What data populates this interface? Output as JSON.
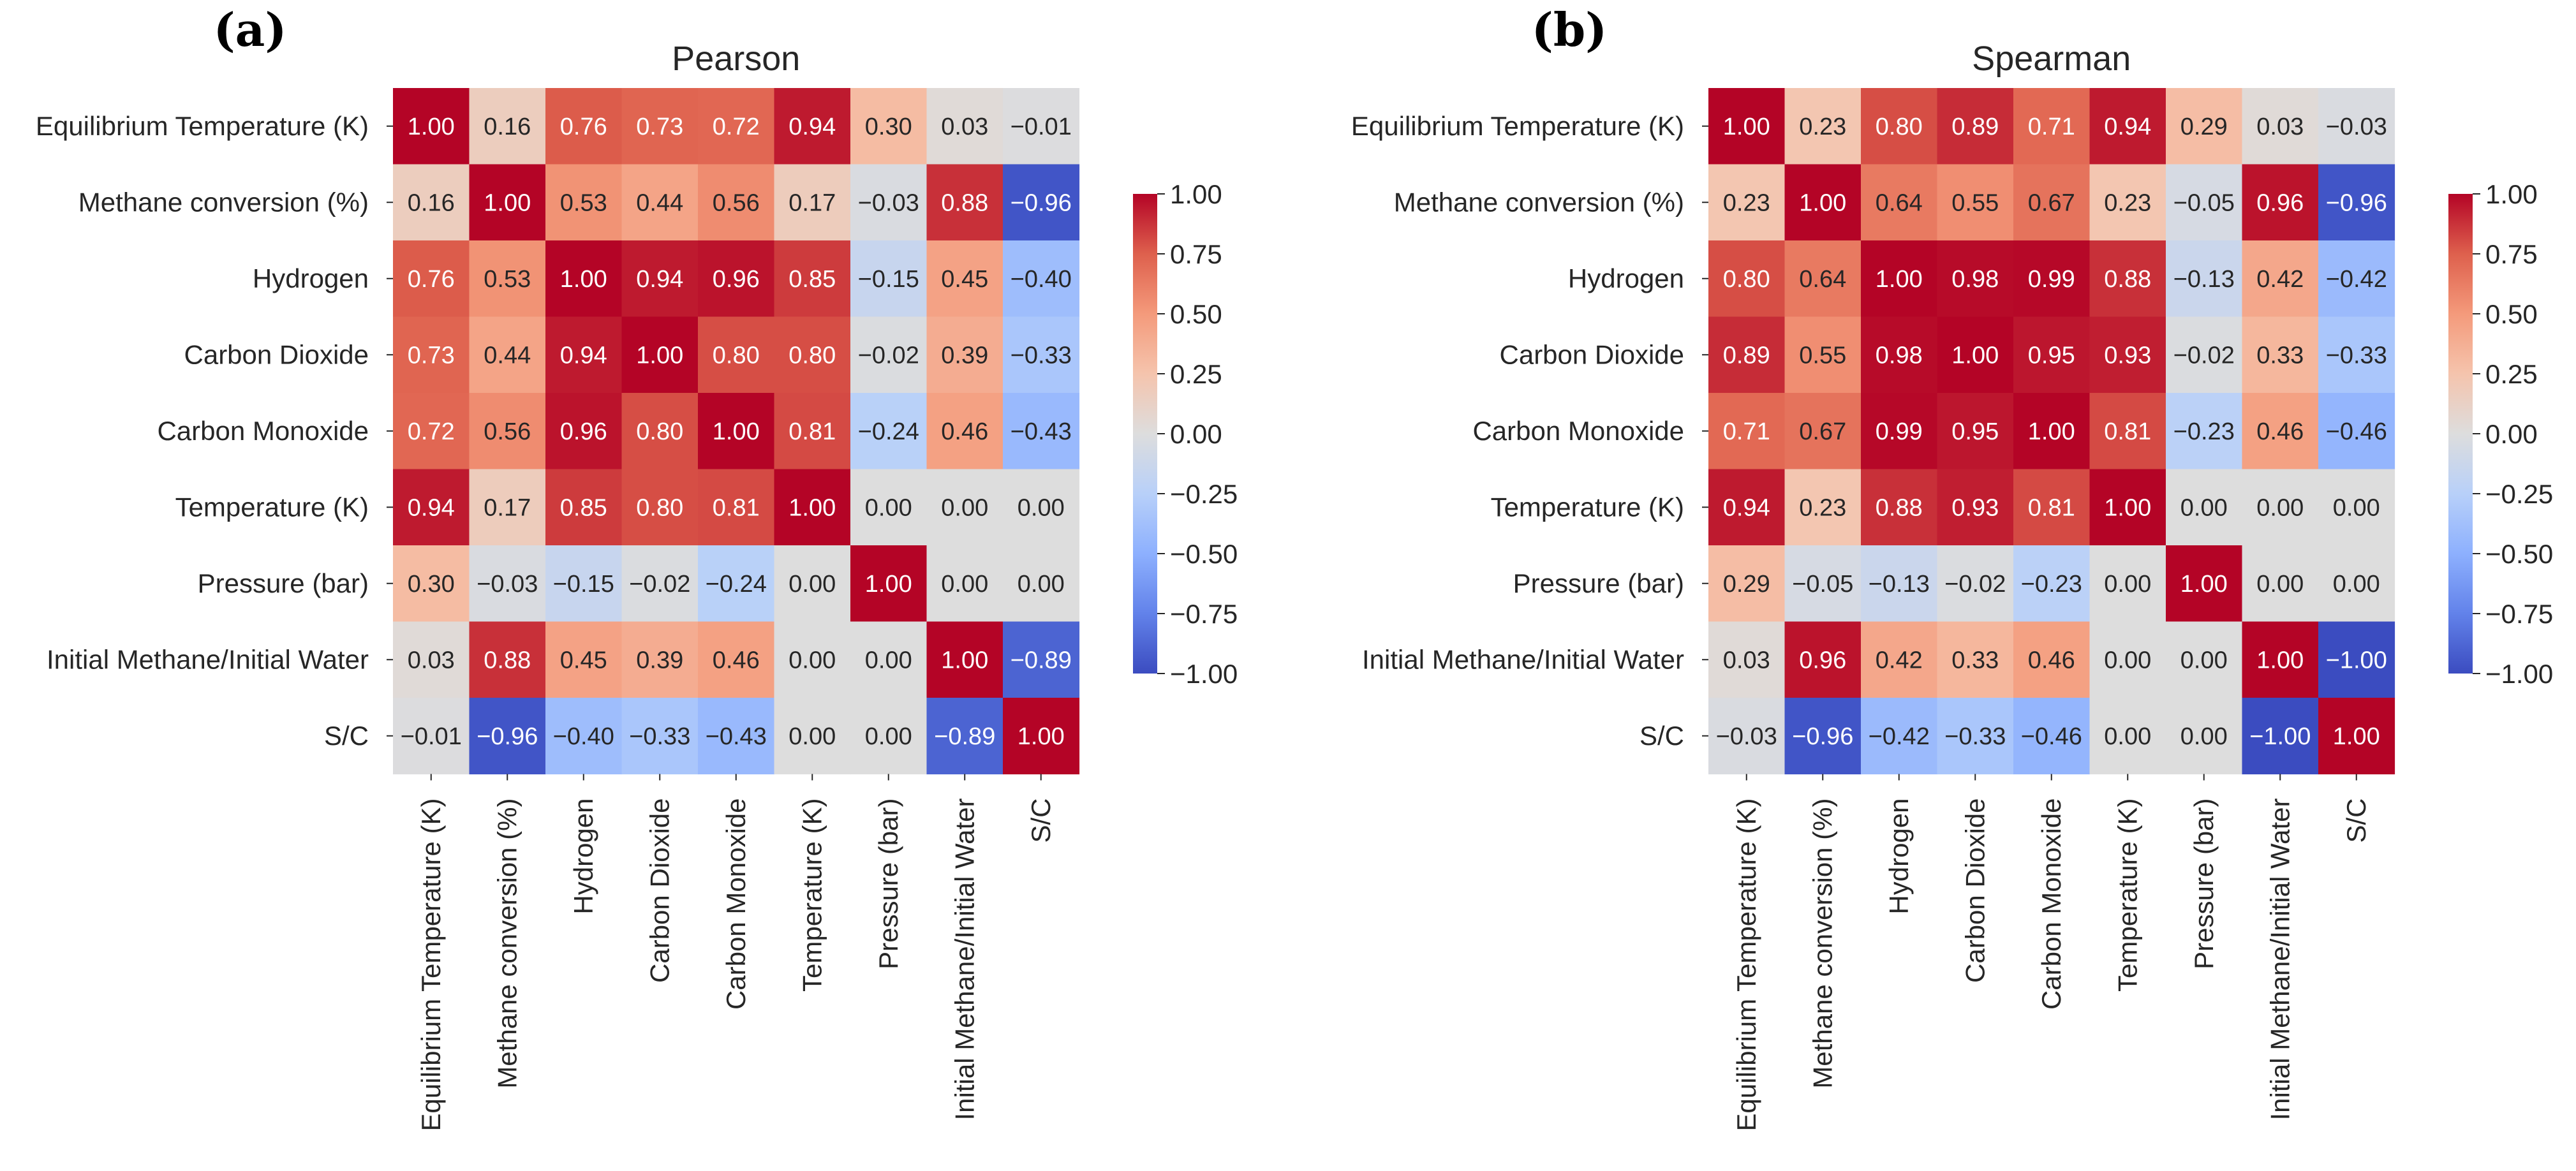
{
  "chart_data": [
    {
      "type": "heatmap",
      "panel": "(a)",
      "title": "Pearson",
      "variables": [
        "Equilibrium Temperature (K)",
        "Methane conversion (%)",
        "Hydrogen",
        "Carbon Dioxide",
        "Carbon Monoxide",
        "Temperature (K)",
        "Pressure (bar)",
        "Initial Methane/Initial Water",
        "S/C"
      ],
      "matrix": [
        [
          1.0,
          0.16,
          0.76,
          0.73,
          0.72,
          0.94,
          0.3,
          0.03,
          -0.01
        ],
        [
          0.16,
          1.0,
          0.53,
          0.44,
          0.56,
          0.17,
          -0.03,
          0.88,
          -0.96
        ],
        [
          0.76,
          0.53,
          1.0,
          0.94,
          0.96,
          0.85,
          -0.15,
          0.45,
          -0.4
        ],
        [
          0.73,
          0.44,
          0.94,
          1.0,
          0.8,
          0.8,
          -0.02,
          0.39,
          -0.33
        ],
        [
          0.72,
          0.56,
          0.96,
          0.8,
          1.0,
          0.81,
          -0.24,
          0.46,
          -0.43
        ],
        [
          0.94,
          0.17,
          0.85,
          0.8,
          0.81,
          1.0,
          0.0,
          0.0,
          0.0
        ],
        [
          0.3,
          -0.03,
          -0.15,
          -0.02,
          -0.24,
          0.0,
          1.0,
          0.0,
          0.0
        ],
        [
          0.03,
          0.88,
          0.45,
          0.39,
          0.46,
          0.0,
          0.0,
          1.0,
          -0.89
        ],
        [
          -0.01,
          -0.96,
          -0.4,
          -0.33,
          -0.43,
          0.0,
          0.0,
          -0.89,
          1.0
        ]
      ],
      "colorbar": {
        "range": [
          -1.0,
          1.0
        ],
        "ticks": [
          "1.00",
          "0.75",
          "0.50",
          "0.25",
          "0.00",
          "−0.25",
          "−0.50",
          "−0.75",
          "−1.00"
        ],
        "tick_values": [
          1.0,
          0.75,
          0.5,
          0.25,
          0.0,
          -0.25,
          -0.5,
          -0.75,
          -1.0
        ],
        "colormap": "coolwarm"
      }
    },
    {
      "type": "heatmap",
      "panel": "(b)",
      "title": "Spearman",
      "variables": [
        "Equilibrium Temperature (K)",
        "Methane conversion (%)",
        "Hydrogen",
        "Carbon Dioxide",
        "Carbon Monoxide",
        "Temperature (K)",
        "Pressure (bar)",
        "Initial Methane/Initial Water",
        "S/C"
      ],
      "matrix": [
        [
          1.0,
          0.23,
          0.8,
          0.89,
          0.71,
          0.94,
          0.29,
          0.03,
          -0.03
        ],
        [
          0.23,
          1.0,
          0.64,
          0.55,
          0.67,
          0.23,
          -0.05,
          0.96,
          -0.96
        ],
        [
          0.8,
          0.64,
          1.0,
          0.98,
          0.99,
          0.88,
          -0.13,
          0.42,
          -0.42
        ],
        [
          0.89,
          0.55,
          0.98,
          1.0,
          0.95,
          0.93,
          -0.02,
          0.33,
          -0.33
        ],
        [
          0.71,
          0.67,
          0.99,
          0.95,
          1.0,
          0.81,
          -0.23,
          0.46,
          -0.46
        ],
        [
          0.94,
          0.23,
          0.88,
          0.93,
          0.81,
          1.0,
          0.0,
          0.0,
          0.0
        ],
        [
          0.29,
          -0.05,
          -0.13,
          -0.02,
          -0.23,
          0.0,
          1.0,
          0.0,
          0.0
        ],
        [
          0.03,
          0.96,
          0.42,
          0.33,
          0.46,
          0.0,
          0.0,
          1.0,
          -1.0
        ],
        [
          -0.03,
          -0.96,
          -0.42,
          -0.33,
          -0.46,
          0.0,
          0.0,
          -1.0,
          1.0
        ]
      ],
      "colorbar": {
        "range": [
          -1.0,
          1.0
        ],
        "ticks": [
          "1.00",
          "0.75",
          "0.50",
          "0.25",
          "0.00",
          "−0.25",
          "−0.50",
          "−0.75",
          "−1.00"
        ],
        "tick_values": [
          1.0,
          0.75,
          0.5,
          0.25,
          0.0,
          -0.25,
          -0.5,
          -0.75,
          -1.0
        ],
        "colormap": "coolwarm"
      }
    }
  ]
}
